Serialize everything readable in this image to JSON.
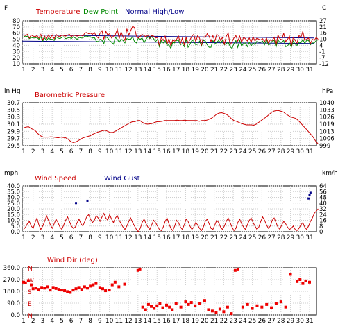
{
  "chart_data": [
    {
      "type": "line",
      "unit_left": "F",
      "unit_right": "C",
      "series": [
        {
          "name": "Temperature",
          "color": "#cc0000"
        },
        {
          "name": "Dew Point",
          "color": "#008800"
        },
        {
          "name": "Normal High/Low",
          "color": "#000088"
        }
      ],
      "yticks_left": [
        "80",
        "70",
        "60",
        "50",
        "40",
        "30",
        "20",
        "10"
      ],
      "yticks_right": [
        "27",
        "21",
        "16",
        "10",
        "4",
        "-1",
        "-7",
        "-12"
      ],
      "ylim": [
        10,
        80
      ],
      "temperature_y": [
        57,
        56,
        58,
        52,
        57,
        55,
        54,
        56,
        52,
        58,
        49,
        55,
        51,
        57,
        52,
        57,
        51,
        58,
        55,
        54,
        57,
        56,
        55,
        57,
        58,
        54,
        57,
        56,
        55,
        56,
        57,
        55,
        60,
        61,
        59,
        60,
        58,
        61,
        55,
        52,
        60,
        64,
        50,
        63,
        57,
        59,
        52,
        55,
        58,
        66,
        51,
        62,
        54,
        48,
        67,
        57,
        64,
        71,
        69,
        55,
        52,
        55,
        58,
        56,
        54,
        57,
        52,
        56,
        55,
        52,
        53,
        40,
        53,
        48,
        55,
        42,
        51,
        39,
        49,
        47,
        50,
        55,
        43,
        52,
        41,
        53,
        44,
        49,
        55,
        58,
        46,
        56,
        52,
        40,
        54,
        53,
        59,
        55,
        46,
        56,
        47,
        58,
        56,
        48,
        53,
        42,
        55,
        60,
        41,
        46,
        52,
        56,
        47,
        55,
        45,
        53,
        51,
        47,
        52,
        45,
        54,
        47,
        52,
        50,
        49,
        51,
        46,
        52,
        44,
        49,
        48,
        53,
        40,
        57,
        51,
        49,
        60,
        46,
        50,
        55,
        39,
        53,
        48,
        44,
        56,
        53,
        63,
        48,
        50,
        52,
        43,
        50,
        48,
        53,
        50
      ],
      "dewpoint_y": [
        55,
        54,
        55,
        51,
        53,
        52,
        52,
        53,
        50,
        54,
        47,
        52,
        48,
        52,
        50,
        50,
        48,
        54,
        52,
        51,
        53,
        54,
        51,
        52,
        53,
        51,
        54,
        52,
        50,
        53,
        52,
        52,
        55,
        55,
        54,
        54,
        52,
        53,
        47,
        46,
        50,
        48,
        43,
        54,
        52,
        48,
        45,
        42,
        53,
        50,
        45,
        50,
        48,
        44,
        51,
        50,
        50,
        54,
        46,
        44,
        52,
        50,
        52,
        44,
        50,
        54,
        51,
        54,
        51,
        46,
        50,
        38,
        48,
        44,
        48,
        40,
        41,
        35,
        45,
        44,
        48,
        48,
        41,
        43,
        38,
        50,
        37,
        42,
        48,
        47,
        41,
        42,
        47,
        39,
        48,
        47,
        41,
        37,
        37,
        48,
        42,
        45,
        48,
        44,
        48,
        41,
        43,
        45,
        38,
        35,
        43,
        48,
        37,
        48,
        39,
        43,
        44,
        38,
        45,
        39,
        44,
        41,
        47,
        45,
        45,
        47,
        41,
        49,
        41,
        42,
        47,
        48,
        37,
        49,
        45,
        45,
        48,
        38,
        39,
        44,
        37,
        47,
        42,
        40,
        45,
        44,
        50,
        43,
        48,
        48,
        41,
        44,
        44,
        48,
        49
      ],
      "normal_high": [
        57,
        52
      ],
      "normal_low": [
        47,
        43
      ]
    },
    {
      "type": "line",
      "title": "Barometric Pressure",
      "unit_left": "in Hg",
      "unit_right": "hPa",
      "yticks_left": [
        "30.7",
        "30.5",
        "30.3",
        "30.1",
        "29.9",
        "29.7",
        "29.5"
      ],
      "yticks_right": [
        "1040",
        "1033",
        "1026",
        "1019",
        "1013",
        "1006",
        "999"
      ],
      "ylim": [
        29.5,
        30.7
      ],
      "y": [
        30.0,
        30.02,
        30.03,
        29.98,
        29.95,
        29.9,
        29.82,
        29.77,
        29.74,
        29.74,
        29.74,
        29.75,
        29.74,
        29.73,
        29.72,
        29.74,
        29.73,
        29.72,
        29.68,
        29.62,
        29.59,
        29.6,
        29.64,
        29.68,
        29.72,
        29.74,
        29.76,
        29.78,
        29.82,
        29.85,
        29.88,
        29.9,
        29.92,
        29.93,
        29.9,
        29.87,
        29.87,
        29.9,
        29.94,
        29.98,
        30.02,
        30.06,
        30.1,
        30.14,
        30.17,
        30.17,
        30.2,
        30.2,
        30.15,
        30.12,
        30.1,
        30.11,
        30.12,
        30.15,
        30.17,
        30.17,
        30.18,
        30.2,
        30.2,
        30.2,
        30.2,
        30.2,
        30.21,
        30.2,
        30.2,
        30.21,
        30.2,
        30.2,
        30.2,
        30.2,
        30.2,
        30.18,
        30.2,
        30.2,
        30.21,
        30.24,
        30.27,
        30.32,
        30.38,
        30.41,
        30.42,
        30.4,
        30.37,
        30.32,
        30.25,
        30.2,
        30.18,
        30.15,
        30.12,
        30.1,
        30.08,
        30.08,
        30.08,
        30.07,
        30.1,
        30.15,
        30.2,
        30.25,
        30.3,
        30.36,
        30.42,
        30.46,
        30.48,
        30.48,
        30.46,
        30.44,
        30.38,
        30.34,
        30.3,
        30.28,
        30.26,
        30.2,
        30.13,
        30.05,
        29.98,
        29.9,
        29.82,
        29.74,
        29.63,
        29.55
      ]
    },
    {
      "type": "line",
      "unit_left": "mph",
      "unit_right": "km/h",
      "series": [
        {
          "name": "Wind Speed",
          "color": "#cc0000"
        },
        {
          "name": "Wind Gust",
          "color": "#000088"
        }
      ],
      "yticks_left": [
        "40.0",
        "35.0",
        "30.0",
        "25.0",
        "20.0",
        "15.0",
        "10.0",
        "5.0",
        "0.0"
      ],
      "yticks_right": [
        "64",
        "56",
        "48",
        "40",
        "32",
        "24",
        "16",
        "8",
        "0"
      ],
      "ylim": [
        0,
        40
      ],
      "speed_y": [
        2,
        4,
        7,
        9,
        5,
        3,
        8,
        12,
        6,
        2,
        5,
        9,
        14,
        10,
        6,
        3,
        7,
        11,
        8,
        4,
        2,
        6,
        10,
        13,
        9,
        5,
        3,
        4,
        8,
        11,
        7,
        5,
        9,
        13,
        15,
        11,
        8,
        10,
        14,
        12,
        9,
        13,
        16,
        12,
        10,
        15,
        11,
        8,
        12,
        14,
        10,
        7,
        4,
        2,
        5,
        9,
        12,
        8,
        5,
        2,
        0,
        3,
        8,
        11,
        7,
        4,
        2,
        6,
        10,
        8,
        5,
        2,
        1,
        4,
        9,
        12,
        7,
        3,
        1,
        5,
        10,
        8,
        4,
        2,
        6,
        11,
        9,
        5,
        2,
        4,
        8,
        6,
        3,
        1,
        4,
        9,
        11,
        7,
        3,
        2,
        6,
        10,
        8,
        4,
        2,
        5,
        9,
        12,
        8,
        4,
        1,
        3,
        8,
        11,
        7,
        4,
        2,
        6,
        10,
        12,
        8,
        5,
        2,
        4,
        9,
        13,
        10,
        6,
        3,
        5,
        10,
        12,
        8,
        4,
        2,
        6,
        9,
        7,
        4,
        2,
        3,
        5,
        2,
        1,
        3,
        6,
        8,
        4,
        2,
        5,
        9,
        12,
        16,
        18,
        20
      ],
      "gust": [
        [
          6.5,
          25
        ],
        [
          7.7,
          27
        ],
        [
          30.9,
          29
        ],
        [
          31.0,
          32
        ],
        [
          31.1,
          34
        ]
      ]
    },
    {
      "type": "scatter",
      "title": "Wind Dir (deg)",
      "yticks_left": [
        "360.0",
        "270.0",
        "180.0",
        "90.0",
        "0.0"
      ],
      "compass": [
        "N",
        "W",
        "S",
        "E",
        "N"
      ],
      "ylim": [
        0,
        360
      ],
      "points": [
        [
          1.0,
          250
        ],
        [
          1.2,
          245
        ],
        [
          1.5,
          262
        ],
        [
          1.8,
          230
        ],
        [
          2.0,
          200
        ],
        [
          2.3,
          205
        ],
        [
          2.6,
          195
        ],
        [
          2.9,
          210
        ],
        [
          3.2,
          205
        ],
        [
          3.5,
          215
        ],
        [
          3.8,
          190
        ],
        [
          4.1,
          210
        ],
        [
          4.4,
          202
        ],
        [
          4.7,
          195
        ],
        [
          5.0,
          190
        ],
        [
          5.3,
          185
        ],
        [
          5.6,
          178
        ],
        [
          5.9,
          172
        ],
        [
          6.2,
          190
        ],
        [
          6.5,
          200
        ],
        [
          6.8,
          210
        ],
        [
          7.1,
          195
        ],
        [
          7.4,
          215
        ],
        [
          7.7,
          205
        ],
        [
          8.0,
          220
        ],
        [
          8.3,
          230
        ],
        [
          8.6,
          240
        ],
        [
          9.0,
          210
        ],
        [
          9.3,
          200
        ],
        [
          9.6,
          185
        ],
        [
          10.0,
          190
        ],
        [
          10.3,
          230
        ],
        [
          10.6,
          250
        ],
        [
          11.0,
          215
        ],
        [
          11.6,
          235
        ],
        [
          13.0,
          340
        ],
        [
          13.2,
          350
        ],
        [
          13.5,
          60
        ],
        [
          13.8,
          40
        ],
        [
          14.1,
          80
        ],
        [
          14.4,
          65
        ],
        [
          14.7,
          50
        ],
        [
          15.0,
          70
        ],
        [
          15.3,
          90
        ],
        [
          15.6,
          55
        ],
        [
          16.0,
          75
        ],
        [
          16.3,
          60
        ],
        [
          16.6,
          40
        ],
        [
          17.0,
          85
        ],
        [
          17.5,
          60
        ],
        [
          18.0,
          100
        ],
        [
          18.3,
          80
        ],
        [
          18.6,
          95
        ],
        [
          19.0,
          70
        ],
        [
          19.5,
          90
        ],
        [
          20.0,
          110
        ],
        [
          20.4,
          40
        ],
        [
          20.8,
          30
        ],
        [
          21.2,
          20
        ],
        [
          21.6,
          45
        ],
        [
          22.0,
          25
        ],
        [
          22.4,
          60
        ],
        [
          22.8,
          10
        ],
        [
          23.2,
          340
        ],
        [
          23.5,
          350
        ],
        [
          24.0,
          60
        ],
        [
          24.5,
          80
        ],
        [
          25.0,
          50
        ],
        [
          25.5,
          70
        ],
        [
          26.0,
          60
        ],
        [
          26.5,
          80
        ],
        [
          27.0,
          55
        ],
        [
          27.5,
          90
        ],
        [
          28.0,
          100
        ],
        [
          28.5,
          60
        ],
        [
          29.0,
          310
        ],
        [
          29.7,
          255
        ],
        [
          30.0,
          270
        ],
        [
          30.3,
          240
        ],
        [
          30.6,
          260
        ],
        [
          31.0,
          250
        ]
      ]
    }
  ],
  "day_labels": [
    "1",
    "2",
    "3",
    "4",
    "5",
    "6",
    "7",
    "8",
    "9",
    "10",
    "11",
    "12",
    "13",
    "14",
    "15",
    "16",
    "17",
    "18",
    "19",
    "20",
    "21",
    "22",
    "23",
    "24",
    "25",
    "26",
    "27",
    "28",
    "29",
    "30",
    "31"
  ]
}
